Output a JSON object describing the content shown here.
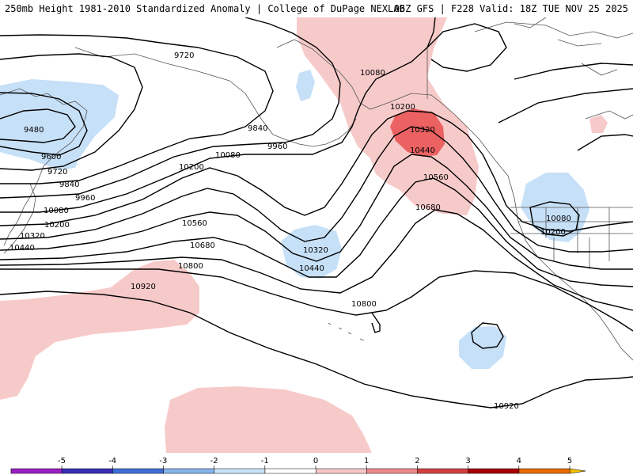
{
  "header": {
    "title_left": "250mb Height 1981-2010 Standardized Anomaly | College of DuPage NEXLAB",
    "title_right": "06Z GFS | F228 Valid: 18Z TUE NOV 25 2025"
  },
  "contour_labels": {
    "c9720a": "9720",
    "c10080a": "10080",
    "c10200a": "10200",
    "c10320a": "10320",
    "c10440a": "10440",
    "c10560a": "10560",
    "c10680a": "10680",
    "c9840a": "9840",
    "c9960a": "9960",
    "c10080b": "10080",
    "c10200b": "10200",
    "c9480": "9480",
    "c9600": "9600",
    "c9720b": "9720",
    "c9840b": "9840",
    "c9960b": "9960",
    "c10080c": "10080",
    "c10200c": "10200",
    "c10320b": "10320",
    "c10440b": "10440",
    "c10560b": "10560",
    "c10680b": "10680",
    "c10800a": "10800",
    "c10920a": "10920",
    "c10320c": "10320",
    "c10440c": "10440",
    "c10800b": "10800",
    "c10080d": "10080",
    "c10200d": "10200",
    "c10920b": "10920"
  },
  "legend": {
    "ticks": [
      "-5",
      "-4",
      "-3",
      "-2",
      "-1",
      "0",
      "1",
      "2",
      "3",
      "4",
      "5"
    ],
    "colors": [
      "#d65ad6",
      "#9a1fc4",
      "#3a2fb8",
      "#3f6fd6",
      "#86b4ec",
      "#c9e2f8",
      "#ffffff",
      "#f8c8c8",
      "#ef8a8a",
      "#d44040",
      "#a80000",
      "#e86a00",
      "#f5c200"
    ]
  },
  "colors": {
    "neg_anomaly_fill": "#c6e0f8",
    "pos_anomaly_fill": "#f7caca",
    "strong_pos_fill": "#ec6262",
    "contour": "#000000",
    "coastline": "#555555"
  }
}
